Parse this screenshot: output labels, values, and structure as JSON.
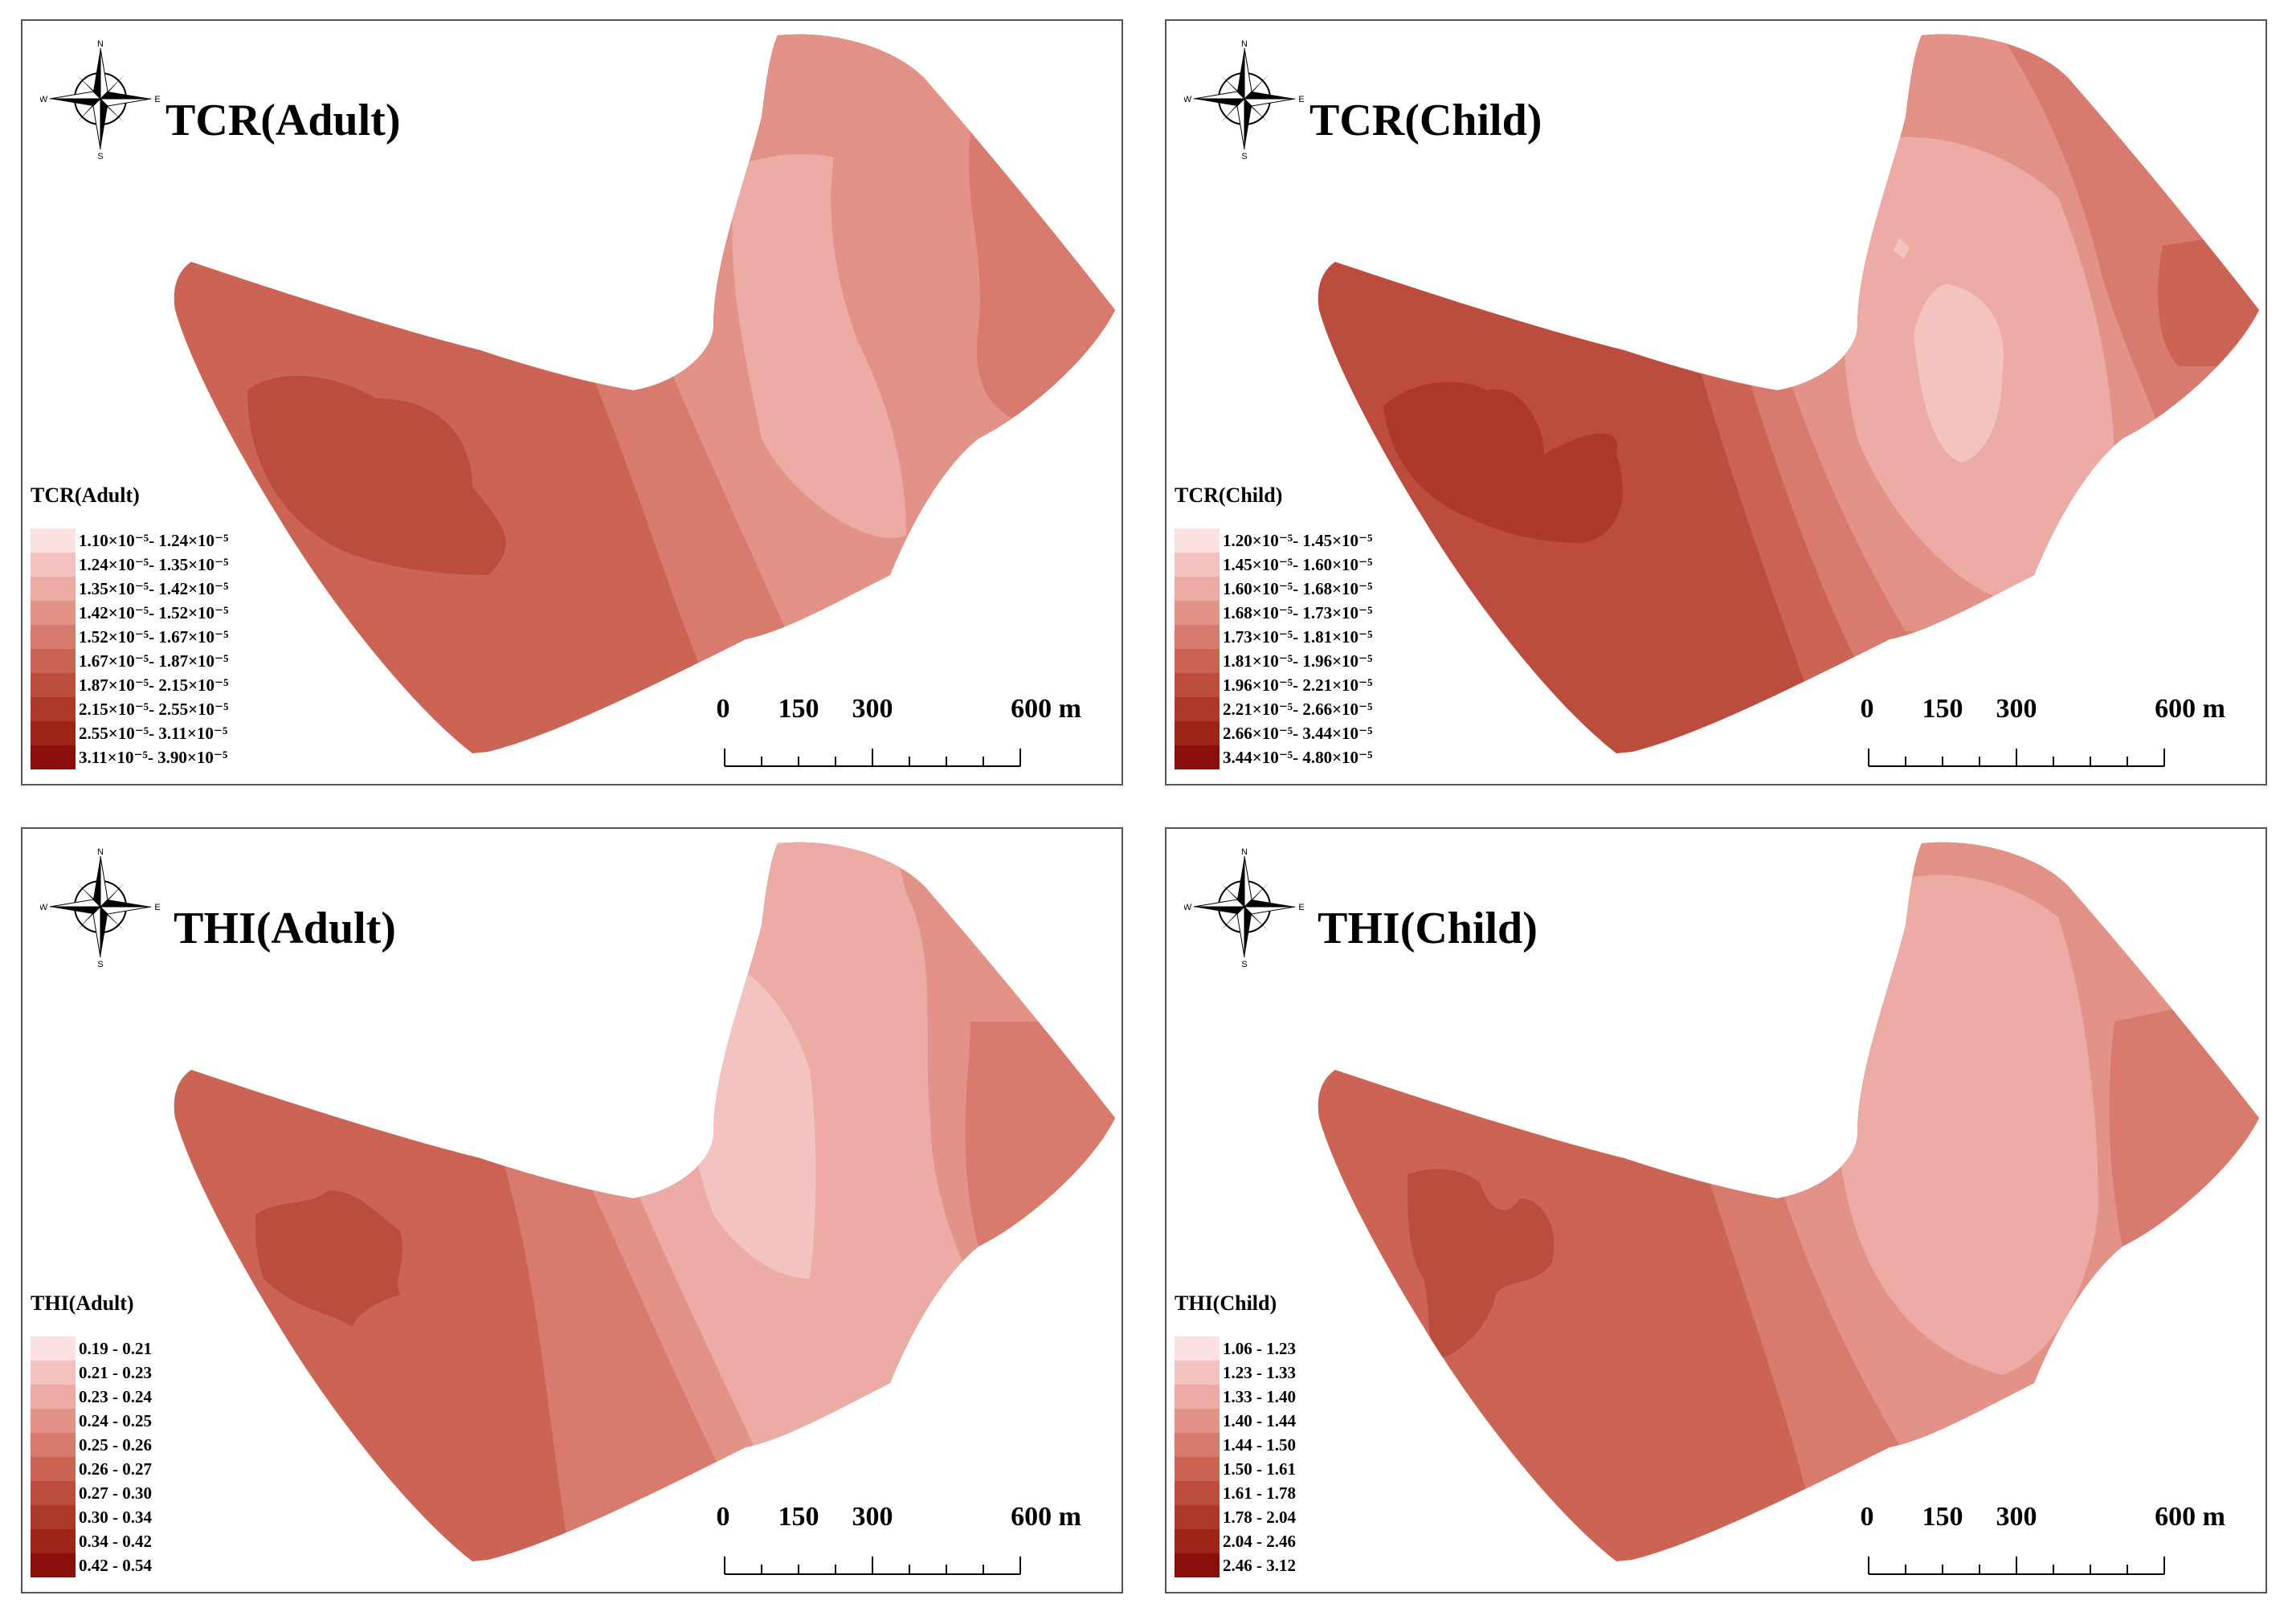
{
  "figure": {
    "panels": [
      {
        "id": "tcr-adult",
        "title": "TCR(Adult)",
        "legend_title": "TCR(Adult)",
        "legend": [
          {
            "label": "1.10×10⁻⁵- 1.24×10⁻⁵",
            "color": "#fbe2e0"
          },
          {
            "label": "1.24×10⁻⁵- 1.35×10⁻⁵",
            "color": "#f3c4bf"
          },
          {
            "label": "1.35×10⁻⁵- 1.42×10⁻⁵",
            "color": "#ecaca5"
          },
          {
            "label": "1.42×10⁻⁵- 1.52×10⁻⁵",
            "color": "#e39287"
          },
          {
            "label": "1.52×10⁻⁵- 1.67×10⁻⁵",
            "color": "#d87b6e"
          },
          {
            "label": "1.67×10⁻⁵- 1.87×10⁻⁵",
            "color": "#cb6455"
          },
          {
            "label": "1.87×10⁻⁵- 2.15×10⁻⁵",
            "color": "#bc4d3e"
          },
          {
            "label": "2.15×10⁻⁵- 2.55×10⁻⁵",
            "color": "#ad392b"
          },
          {
            "label": "2.55×10⁻⁵- 3.11×10⁻⁵",
            "color": "#9c2419"
          },
          {
            "label": "3.11×10⁻⁵- 3.90×10⁻⁵",
            "color": "#8a0f0c"
          }
        ]
      },
      {
        "id": "tcr-child",
        "title": "TCR(Child)",
        "legend_title": "TCR(Child)",
        "legend": [
          {
            "label": "1.20×10⁻⁵- 1.45×10⁻⁵",
            "color": "#fbe2e0"
          },
          {
            "label": "1.45×10⁻⁵- 1.60×10⁻⁵",
            "color": "#f3c4bf"
          },
          {
            "label": "1.60×10⁻⁵- 1.68×10⁻⁵",
            "color": "#ecaca5"
          },
          {
            "label": "1.68×10⁻⁵- 1.73×10⁻⁵",
            "color": "#e39287"
          },
          {
            "label": "1.73×10⁻⁵- 1.81×10⁻⁵",
            "color": "#d87b6e"
          },
          {
            "label": "1.81×10⁻⁵- 1.96×10⁻⁵",
            "color": "#cb6455"
          },
          {
            "label": "1.96×10⁻⁵- 2.21×10⁻⁵",
            "color": "#bc4d3e"
          },
          {
            "label": "2.21×10⁻⁵- 2.66×10⁻⁵",
            "color": "#ad392b"
          },
          {
            "label": "2.66×10⁻⁵- 3.44×10⁻⁵",
            "color": "#9c2419"
          },
          {
            "label": "3.44×10⁻⁵- 4.80×10⁻⁵",
            "color": "#8a0f0c"
          }
        ]
      },
      {
        "id": "thi-adult",
        "title": "THI(Adult)",
        "legend_title": "THI(Adult)",
        "legend": [
          {
            "label": "0.19 - 0.21",
            "color": "#fbe2e0"
          },
          {
            "label": "0.21 - 0.23",
            "color": "#f3c4bf"
          },
          {
            "label": "0.23 - 0.24",
            "color": "#ecaca5"
          },
          {
            "label": "0.24 - 0.25",
            "color": "#e39287"
          },
          {
            "label": "0.25 - 0.26",
            "color": "#d87b6e"
          },
          {
            "label": "0.26 - 0.27",
            "color": "#cb6455"
          },
          {
            "label": "0.27 - 0.30",
            "color": "#bc4d3e"
          },
          {
            "label": "0.30 - 0.34",
            "color": "#ad392b"
          },
          {
            "label": "0.34 - 0.42",
            "color": "#9c2419"
          },
          {
            "label": "0.42 - 0.54",
            "color": "#8a0f0c"
          }
        ]
      },
      {
        "id": "thi-child",
        "title": "THI(Child)",
        "legend_title": "THI(Child)",
        "legend": [
          {
            "label": "1.06 - 1.23",
            "color": "#fbe2e0"
          },
          {
            "label": "1.23 - 1.33",
            "color": "#f3c4bf"
          },
          {
            "label": "1.33 - 1.40",
            "color": "#ecaca5"
          },
          {
            "label": "1.40 - 1.44",
            "color": "#e39287"
          },
          {
            "label": "1.44 - 1.50",
            "color": "#d87b6e"
          },
          {
            "label": "1.50 - 1.61",
            "color": "#cb6455"
          },
          {
            "label": "1.61 - 1.78",
            "color": "#bc4d3e"
          },
          {
            "label": "1.78 - 2.04",
            "color": "#ad392b"
          },
          {
            "label": "2.04 - 2.46",
            "color": "#9c2419"
          },
          {
            "label": "2.46 - 3.12",
            "color": "#8a0f0c"
          }
        ]
      }
    ],
    "compass": {
      "n": "N",
      "s": "S",
      "e": "E",
      "w": "W"
    },
    "scalebar": {
      "labels": [
        "0",
        "150",
        "300",
        "600 m"
      ]
    }
  }
}
